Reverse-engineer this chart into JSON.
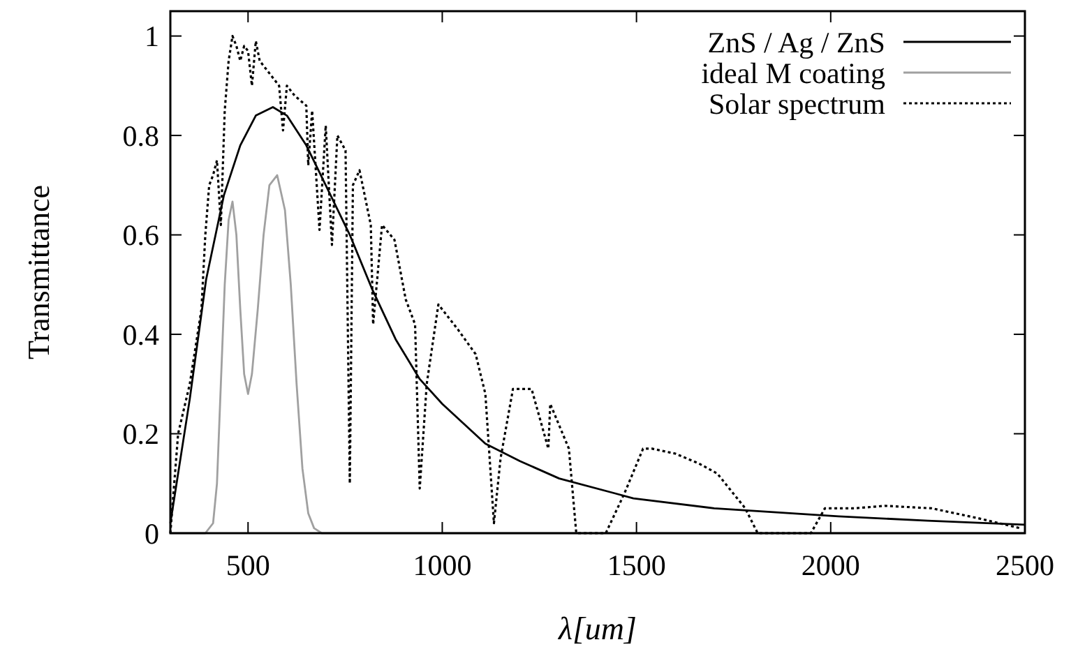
{
  "chart_data": {
    "type": "line",
    "xlabel": "λ[um]",
    "ylabel": "Transmittance",
    "xlim": [
      300,
      2500
    ],
    "ylim": [
      0,
      1.05
    ],
    "xticks": [
      500,
      1000,
      1500,
      2000,
      2500
    ],
    "yticks": [
      0,
      0.2,
      0.4,
      0.6,
      0.8,
      1
    ],
    "grid": false,
    "legend": "top right",
    "series": [
      {
        "name": "ZnS / Ag / ZnS",
        "color": "#000000",
        "line_style": "solid",
        "x": [
          300,
          320,
          350,
          392,
          438,
          480,
          520,
          564,
          600,
          650,
          700,
          762,
          820,
          880,
          942,
          1000,
          1111,
          1200,
          1301,
          1445,
          1492,
          1700,
          2020,
          2250,
          2500
        ],
        "values": [
          0.02,
          0.12,
          0.27,
          0.51,
          0.68,
          0.78,
          0.84,
          0.857,
          0.84,
          0.78,
          0.7,
          0.6,
          0.49,
          0.39,
          0.31,
          0.26,
          0.18,
          0.145,
          0.11,
          0.08,
          0.07,
          0.05,
          0.034,
          0.025,
          0.017
        ]
      },
      {
        "name": "ideal M coating",
        "color": "#a0a0a0",
        "line_style": "solid",
        "x": [
          300,
          390,
          410,
          420,
          430,
          440,
          450,
          460,
          470,
          480,
          490,
          500,
          510,
          525,
          540,
          555,
          575,
          595,
          610,
          625,
          640,
          655,
          670,
          690,
          2500
        ],
        "values": [
          0,
          0,
          0.02,
          0.1,
          0.3,
          0.5,
          0.63,
          0.667,
          0.6,
          0.45,
          0.32,
          0.28,
          0.32,
          0.45,
          0.6,
          0.7,
          0.72,
          0.65,
          0.5,
          0.3,
          0.13,
          0.04,
          0.01,
          0,
          0
        ]
      },
      {
        "name": "Solar spectrum",
        "color": "#000000",
        "line_style": "dotted",
        "x": [
          300,
          320,
          350,
          380,
          390,
          400,
          410,
          420,
          430,
          440,
          450,
          460,
          470,
          480,
          490,
          500,
          510,
          520,
          530,
          540,
          550,
          560,
          580,
          590,
          600,
          620,
          650,
          655,
          665,
          684,
          700,
          716,
          730,
          751,
          762,
          770,
          787,
          816,
          822,
          845,
          877,
          906,
          930,
          942,
          960,
          990,
          1040,
          1086,
          1111,
          1133,
          1150,
          1182,
          1230,
          1273,
          1278,
          1326,
          1345,
          1421,
          1469,
          1517,
          1540,
          1600,
          1661,
          1708,
          1780,
          1812,
          1949,
          1985,
          2060,
          2140,
          2260,
          2380,
          2488
        ],
        "values": [
          0,
          0.2,
          0.3,
          0.45,
          0.6,
          0.7,
          0.72,
          0.75,
          0.62,
          0.85,
          0.95,
          1.0,
          0.98,
          0.95,
          0.98,
          0.97,
          0.9,
          0.99,
          0.95,
          0.94,
          0.93,
          0.92,
          0.9,
          0.81,
          0.9,
          0.88,
          0.86,
          0.74,
          0.85,
          0.61,
          0.82,
          0.58,
          0.8,
          0.77,
          0.1,
          0.7,
          0.73,
          0.62,
          0.42,
          0.62,
          0.59,
          0.47,
          0.42,
          0.09,
          0.3,
          0.46,
          0.41,
          0.36,
          0.28,
          0.02,
          0.15,
          0.29,
          0.29,
          0.17,
          0.26,
          0.17,
          0,
          0,
          0.08,
          0.17,
          0.17,
          0.16,
          0.14,
          0.12,
          0.05,
          0,
          0,
          0.05,
          0.05,
          0.055,
          0.05,
          0.03,
          0.01
        ]
      }
    ]
  }
}
